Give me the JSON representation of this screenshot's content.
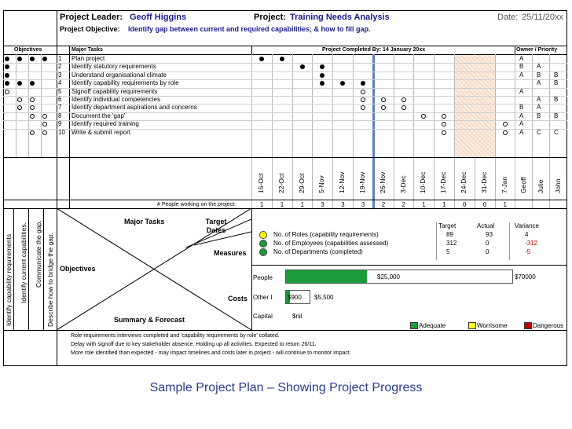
{
  "header": {
    "leader_label": "Project Leader:",
    "leader_name": "Geoff Higgins",
    "project_label": "Project:",
    "project_name": "Training Needs Analysis",
    "date_label": "Date:",
    "date_value": "25/11/20xx",
    "objective_label": "Project Objective:",
    "objective_text": "Identify gap between current and required capabilities; & how to fill gap."
  },
  "columns": {
    "objectives": "Objectives",
    "major_tasks": "Major Tasks",
    "completed_by": "Project Completed By: 14 January 20xx",
    "owner_priority": "Owner / Priority"
  },
  "tasks": [
    {
      "num": "1",
      "label": "Plan project",
      "obj": [
        "f",
        "f",
        "f",
        "f"
      ],
      "marks": [
        [
          "f",
          "f",
          "",
          ""
        ],
        [
          "",
          "",
          "",
          ""
        ],
        [
          "",
          "",
          "",
          ""
        ],
        [
          "",
          "",
          "",
          ""
        ]
      ],
      "owners": [
        "A",
        "",
        ""
      ]
    },
    {
      "num": "2",
      "label": "Identify statutory requirements",
      "obj": [
        "f",
        "",
        "",
        ""
      ],
      "owners": [
        "B",
        "A",
        ""
      ]
    },
    {
      "num": "3",
      "label": "Understand organisational climate",
      "obj": [
        "f",
        "",
        "",
        ""
      ],
      "owners": [
        "A",
        "B",
        "B"
      ]
    },
    {
      "num": "4",
      "label": "Identify capability requirements by role",
      "obj": [
        "f",
        "f",
        "f",
        ""
      ],
      "owners": [
        "",
        "A",
        "B"
      ]
    },
    {
      "num": "5",
      "label": "Signoff capability requirements",
      "obj": [
        "o",
        "",
        "",
        ""
      ],
      "owners": [
        "A",
        "",
        ""
      ]
    },
    {
      "num": "6",
      "label": "Identify individual competencies",
      "obj": [
        "",
        "o",
        "o",
        ""
      ],
      "owners": [
        "",
        "A",
        "B"
      ]
    },
    {
      "num": "7",
      "label": "Identify department aspirations and concerns",
      "obj": [
        "",
        "o",
        "o",
        ""
      ],
      "owners": [
        "B",
        "A",
        ""
      ]
    },
    {
      "num": "8",
      "label": "Document the 'gap'",
      "obj": [
        "",
        "",
        "o",
        "o"
      ],
      "owners": [
        "A",
        "B",
        "B"
      ]
    },
    {
      "num": "9",
      "label": "Identify required training",
      "obj": [
        "",
        "",
        "",
        "o"
      ],
      "owners": [
        "A",
        "",
        ""
      ]
    },
    {
      "num": "10",
      "label": "Write & submit report",
      "obj": [
        "",
        "",
        "o",
        "o"
      ],
      "owners": [
        "A",
        "C",
        "C"
      ]
    }
  ],
  "timeline_marks": [
    [
      "f",
      "f",
      "",
      "",
      "",
      "",
      "",
      "",
      "",
      "",
      "",
      "",
      ""
    ],
    [
      "",
      "",
      "f",
      "f",
      "",
      "",
      "",
      "",
      "",
      "",
      "",
      "",
      ""
    ],
    [
      "",
      "",
      "",
      "f",
      "",
      "",
      "",
      "",
      "",
      "",
      "",
      "",
      ""
    ],
    [
      "",
      "",
      "",
      "f",
      "f",
      "f",
      "",
      "",
      "",
      "",
      "",
      "",
      ""
    ],
    [
      "",
      "",
      "",
      "",
      "",
      "o",
      "",
      "",
      "",
      "",
      "",
      "",
      ""
    ],
    [
      "",
      "",
      "",
      "",
      "",
      "o",
      "o",
      "o",
      "",
      "",
      "",
      "",
      ""
    ],
    [
      "",
      "",
      "",
      "",
      "",
      "o",
      "o",
      "o",
      "",
      "",
      "",
      "",
      ""
    ],
    [
      "",
      "",
      "",
      "",
      "",
      "",
      "",
      "",
      "o",
      "o",
      "",
      "",
      ""
    ],
    [
      "",
      "",
      "",
      "",
      "",
      "",
      "",
      "",
      "",
      "o",
      "",
      "",
      "o"
    ],
    [
      "",
      "",
      "",
      "",
      "",
      "",
      "",
      "",
      "",
      "o",
      "",
      "",
      "o"
    ]
  ],
  "dates": [
    "15-Oct",
    "22-Oct",
    "29-Oct",
    "5-Nov",
    "12-Nov",
    "19-Nov",
    "26-Nov",
    "3-Dec",
    "10-Dec",
    "17-Dec",
    "24-Dec",
    "31-Dec",
    "7-Jan"
  ],
  "owners": [
    "Geoff",
    "Julie",
    "John"
  ],
  "people_label": "# People working on the project:",
  "people_counts": [
    "1",
    "1",
    "1",
    "3",
    "3",
    "3",
    "2",
    "2",
    "1",
    "1",
    "0",
    "0",
    "1"
  ],
  "objectives_rotated": [
    "Identify capability requirements",
    "Identify current capabilities.",
    "Communicate the gap.",
    "Describe how to bridge the gap."
  ],
  "xmatrix": {
    "major_tasks": "Major Tasks",
    "target_dates": "Target Dates",
    "measures": "Measures",
    "objectives": "Objectives",
    "costs": "Costs",
    "summary": "Summary & Forecast"
  },
  "measures": {
    "headers": {
      "target": "Target",
      "actual": "Actual",
      "variance": "Variance"
    },
    "rows": [
      {
        "status": "yellow",
        "label": "No. of Roles (capability requirements)",
        "target": "89",
        "actual": "93",
        "variance": "4",
        "variance_color": "#000000"
      },
      {
        "status": "green",
        "label": "No. of Employees (capabilities assessed)",
        "target": "312",
        "actual": "0",
        "variance": "-312",
        "variance_color": "#cc0000"
      },
      {
        "status": "green",
        "label": "No. of Departments (completed)",
        "target": "5",
        "actual": "0",
        "variance": "-5",
        "variance_color": "#cc0000"
      }
    ]
  },
  "costs": {
    "people_label": "People",
    "people_spent": "$25,000",
    "people_budget": "$70000",
    "people_fraction": 0.357,
    "other_label": "Other I",
    "other_spent": "$900",
    "other_budget": "$5,500",
    "other_fraction": 0.164,
    "capital_label": "Capital",
    "capital_value": "$nil"
  },
  "legend": {
    "adequate": "Adequate",
    "worrisome": "Worrisome",
    "dangerous": "Dangerous",
    "colors": {
      "adequate": "#1a9c3a",
      "worrisome": "#ffff00",
      "dangerous": "#c00000"
    }
  },
  "summary_lines": [
    "Role requirements interviews completed and 'capability requirements by role' collated.",
    "Delay with signoff due to key stakeholder absence.  Holding up all activities.  Expected to return 26/11.",
    "More role identified than expected - may impact timelines and costs later in project - will continue to monitor impact."
  ],
  "caption": "Sample Project Plan – Showing Project Progress"
}
